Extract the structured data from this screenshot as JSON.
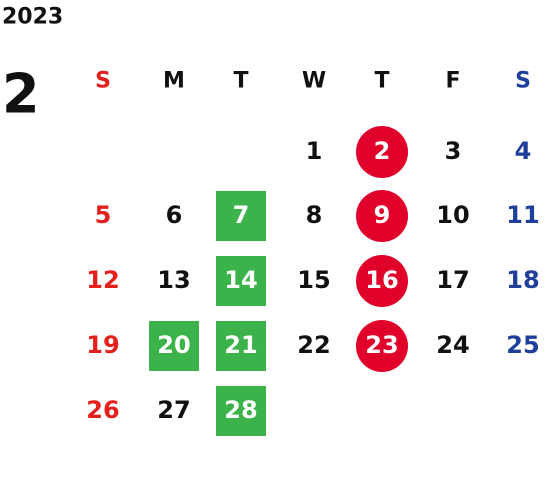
{
  "year": "2023",
  "month": "2",
  "weekdays": [
    "S",
    "M",
    "T",
    "W",
    "T",
    "F",
    "S"
  ],
  "colors": {
    "sunday": "#e3201b",
    "saturday": "#1f3f9a",
    "weekday": "#111111",
    "circle": "#e0002a",
    "box": "#3bb34a",
    "marked_text": "#ffffff"
  },
  "weeks": [
    [
      null,
      null,
      null,
      {
        "day": 1
      },
      {
        "day": 2,
        "mark": "circle"
      },
      {
        "day": 3
      },
      {
        "day": 4
      }
    ],
    [
      {
        "day": 5
      },
      {
        "day": 6
      },
      {
        "day": 7,
        "mark": "box"
      },
      {
        "day": 8
      },
      {
        "day": 9,
        "mark": "circle"
      },
      {
        "day": 10
      },
      {
        "day": 11
      }
    ],
    [
      {
        "day": 12
      },
      {
        "day": 13
      },
      {
        "day": 14,
        "mark": "box"
      },
      {
        "day": 15
      },
      {
        "day": 16,
        "mark": "circle"
      },
      {
        "day": 17
      },
      {
        "day": 18
      }
    ],
    [
      {
        "day": 19
      },
      {
        "day": 20,
        "mark": "box"
      },
      {
        "day": 21,
        "mark": "box"
      },
      {
        "day": 22
      },
      {
        "day": 23,
        "mark": "circle"
      },
      {
        "day": 24
      },
      {
        "day": 25
      }
    ],
    [
      {
        "day": 26
      },
      {
        "day": 27
      },
      {
        "day": 28,
        "mark": "box"
      },
      null,
      null,
      null,
      null
    ]
  ]
}
